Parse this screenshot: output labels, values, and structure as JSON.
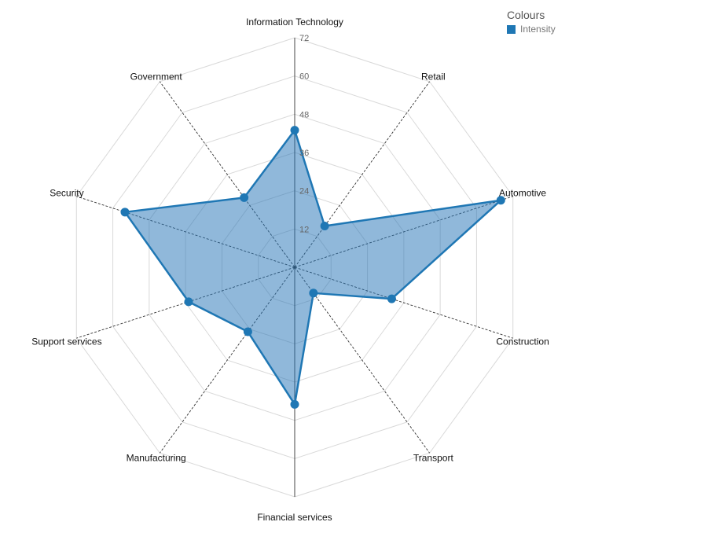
{
  "chart_data": {
    "type": "radar",
    "title": "",
    "categories": [
      "Information Technology",
      "Retail",
      "Automotive",
      "Construction",
      "Transport",
      "Financial services",
      "Manufacturing",
      "Support services",
      "Security",
      "Government"
    ],
    "series": [
      {
        "name": "Intensity",
        "values": [
          43,
          16,
          68,
          32,
          10,
          43,
          25,
          35,
          56,
          27
        ]
      }
    ],
    "rlim": [
      0,
      72
    ],
    "ticks": [
      "12",
      "24",
      "36",
      "48",
      "60",
      "72"
    ],
    "grid": true,
    "legend_position": "top-right",
    "legend_title": "Colours",
    "colors": {
      "series": "#1f77b4",
      "fill": "#2171b5",
      "grid": "#d9d9d9",
      "spoke": "#333333"
    }
  }
}
